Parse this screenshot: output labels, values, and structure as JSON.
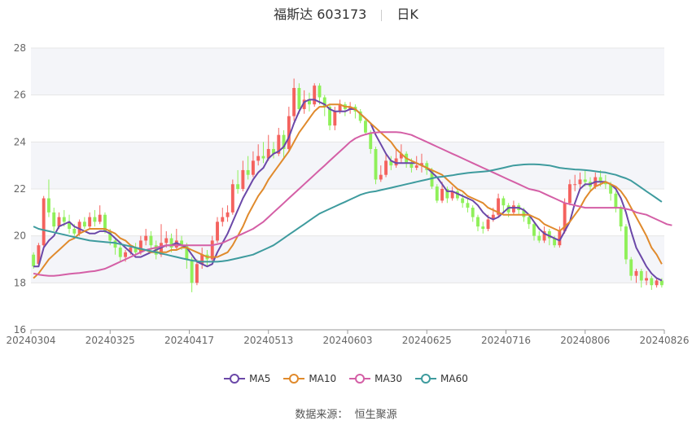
{
  "header": {
    "name": "福斯达 603173",
    "period": "日K"
  },
  "source": {
    "label": "数据来源：",
    "name": "恒生聚源"
  },
  "colors": {
    "up": "#f4625e",
    "down": "#8ff05a",
    "MA5": "#6b48a8",
    "MA10": "#e08a2c",
    "MA30": "#d45fa6",
    "MA60": "#3e9b9e",
    "grid": "#e6e6e6",
    "axis": "#666666",
    "band": "#f4f5f9"
  },
  "chart_data": {
    "type": "candlestick",
    "title": "福斯达 603173 日K",
    "ylim": [
      16,
      28
    ],
    "yticks": [
      16,
      18,
      20,
      22,
      24,
      26,
      28
    ],
    "xticks": [
      "20240304",
      "20240325",
      "20240417",
      "20240513",
      "20240603",
      "20240625",
      "20240716",
      "20240806",
      "20240826"
    ],
    "legend": [
      "MA5",
      "MA10",
      "MA30",
      "MA60"
    ],
    "legend_position": "bottom",
    "candles": [
      [
        19.2,
        18.7,
        19.3,
        18.6
      ],
      [
        18.8,
        19.6,
        19.7,
        18.7
      ],
      [
        19.6,
        21.6,
        21.7,
        19.5
      ],
      [
        21.6,
        21.0,
        22.4,
        20.8
      ],
      [
        21.0,
        20.4,
        21.2,
        20.2
      ],
      [
        20.4,
        20.8,
        21.0,
        20.3
      ],
      [
        20.8,
        20.6,
        21.1,
        20.4
      ],
      [
        20.6,
        20.3,
        20.9,
        20.1
      ],
      [
        20.3,
        20.1,
        20.5,
        20.0
      ],
      [
        20.1,
        20.6,
        20.7,
        20.0
      ],
      [
        20.6,
        20.4,
        20.8,
        20.3
      ],
      [
        20.4,
        20.8,
        21.0,
        20.3
      ],
      [
        20.8,
        20.6,
        21.1,
        20.4
      ],
      [
        20.6,
        20.9,
        21.3,
        20.5
      ],
      [
        20.9,
        20.2,
        21.0,
        20.1
      ],
      [
        20.2,
        19.8,
        20.3,
        19.6
      ],
      [
        19.8,
        19.5,
        19.9,
        19.2
      ],
      [
        19.5,
        19.1,
        19.6,
        18.9
      ],
      [
        19.1,
        19.3,
        19.4,
        18.9
      ],
      [
        19.3,
        19.5,
        19.6,
        19.2
      ],
      [
        19.5,
        19.3,
        19.7,
        19.2
      ],
      [
        19.3,
        19.8,
        20.0,
        19.2
      ],
      [
        19.8,
        20.0,
        20.3,
        19.6
      ],
      [
        20.0,
        19.6,
        20.2,
        19.4
      ],
      [
        19.6,
        19.2,
        19.8,
        19.0
      ],
      [
        19.2,
        19.7,
        20.5,
        19.1
      ],
      [
        19.7,
        19.9,
        20.2,
        19.5
      ],
      [
        19.9,
        19.5,
        20.1,
        19.3
      ],
      [
        19.5,
        19.8,
        20.3,
        19.4
      ],
      [
        19.8,
        19.6,
        20.0,
        19.4
      ],
      [
        19.6,
        19.0,
        19.7,
        18.6
      ],
      [
        19.0,
        18.0,
        19.1,
        17.6
      ],
      [
        18.0,
        18.8,
        19.0,
        17.9
      ],
      [
        18.8,
        19.2,
        19.5,
        18.6
      ],
      [
        19.2,
        19.0,
        19.4,
        18.7
      ],
      [
        19.0,
        19.8,
        20.0,
        18.9
      ],
      [
        19.8,
        20.6,
        20.8,
        19.7
      ],
      [
        20.6,
        20.8,
        21.2,
        20.4
      ],
      [
        20.8,
        21.0,
        21.3,
        20.6
      ],
      [
        21.0,
        22.2,
        22.4,
        20.9
      ],
      [
        22.2,
        22.0,
        22.8,
        21.8
      ],
      [
        22.0,
        22.8,
        23.2,
        21.9
      ],
      [
        22.8,
        22.6,
        23.4,
        22.4
      ],
      [
        22.6,
        23.2,
        23.6,
        22.5
      ],
      [
        23.2,
        23.4,
        23.9,
        23.0
      ],
      [
        23.4,
        23.3,
        24.0,
        23.1
      ],
      [
        23.3,
        23.7,
        24.3,
        23.2
      ],
      [
        23.7,
        23.5,
        24.0,
        23.3
      ],
      [
        23.5,
        24.3,
        24.6,
        23.4
      ],
      [
        24.3,
        23.7,
        24.5,
        23.3
      ],
      [
        23.7,
        25.1,
        25.5,
        23.6
      ],
      [
        25.1,
        26.3,
        26.7,
        24.9
      ],
      [
        26.3,
        25.4,
        26.5,
        25.2
      ],
      [
        25.4,
        25.8,
        26.2,
        25.2
      ],
      [
        25.8,
        25.6,
        26.1,
        25.3
      ],
      [
        25.6,
        26.4,
        26.5,
        25.5
      ],
      [
        26.4,
        25.9,
        26.5,
        25.6
      ],
      [
        25.9,
        25.5,
        26.0,
        25.1
      ],
      [
        25.5,
        24.7,
        25.6,
        24.5
      ],
      [
        24.7,
        25.3,
        25.5,
        24.5
      ],
      [
        25.3,
        25.6,
        25.8,
        25.2
      ],
      [
        25.6,
        25.4,
        25.7,
        25.1
      ],
      [
        25.4,
        25.5,
        25.7,
        25.2
      ],
      [
        25.5,
        25.3,
        25.6,
        25.0
      ],
      [
        25.3,
        24.9,
        25.4,
        24.8
      ],
      [
        24.9,
        24.4,
        25.0,
        24.3
      ],
      [
        24.4,
        23.7,
        24.5,
        23.5
      ],
      [
        23.7,
        22.4,
        23.8,
        22.2
      ],
      [
        22.4,
        22.6,
        23.0,
        22.3
      ],
      [
        22.6,
        23.2,
        23.5,
        22.5
      ],
      [
        23.2,
        23.0,
        23.4,
        22.8
      ],
      [
        23.0,
        23.3,
        23.7,
        22.9
      ],
      [
        23.3,
        23.5,
        23.9,
        23.1
      ],
      [
        23.5,
        23.1,
        23.6,
        22.9
      ],
      [
        23.1,
        22.9,
        23.3,
        22.7
      ],
      [
        22.9,
        23.0,
        23.4,
        22.8
      ],
      [
        23.0,
        23.1,
        23.5,
        22.7
      ],
      [
        23.1,
        22.8,
        23.2,
        22.6
      ],
      [
        22.8,
        22.1,
        22.9,
        22.0
      ],
      [
        22.1,
        21.5,
        22.2,
        21.4
      ],
      [
        21.5,
        22.0,
        22.3,
        21.4
      ],
      [
        22.0,
        21.6,
        22.1,
        21.4
      ],
      [
        21.6,
        21.9,
        22.1,
        21.5
      ],
      [
        21.9,
        21.6,
        22.0,
        21.5
      ],
      [
        21.6,
        21.4,
        21.8,
        21.2
      ],
      [
        21.4,
        21.2,
        21.6,
        21.0
      ],
      [
        21.2,
        20.8,
        21.3,
        20.6
      ],
      [
        20.8,
        20.4,
        20.9,
        20.2
      ],
      [
        20.4,
        20.3,
        20.6,
        20.1
      ],
      [
        20.3,
        20.7,
        20.9,
        20.2
      ],
      [
        20.7,
        20.9,
        21.2,
        20.6
      ],
      [
        20.9,
        21.6,
        21.8,
        20.8
      ],
      [
        21.6,
        21.3,
        21.7,
        21.0
      ],
      [
        21.3,
        21.0,
        21.4,
        20.8
      ],
      [
        21.0,
        21.3,
        21.5,
        20.9
      ],
      [
        21.3,
        21.1,
        21.4,
        20.9
      ],
      [
        21.1,
        20.8,
        21.2,
        20.6
      ],
      [
        20.8,
        20.5,
        20.9,
        20.3
      ],
      [
        20.5,
        20.0,
        20.6,
        19.8
      ],
      [
        20.0,
        19.8,
        20.2,
        19.7
      ],
      [
        19.8,
        20.2,
        20.4,
        19.7
      ],
      [
        20.2,
        19.9,
        20.3,
        19.6
      ],
      [
        19.9,
        19.6,
        20.0,
        19.5
      ],
      [
        19.6,
        20.2,
        20.4,
        19.5
      ],
      [
        20.2,
        21.4,
        21.6,
        20.1
      ],
      [
        21.4,
        22.2,
        22.4,
        21.3
      ],
      [
        22.2,
        22.2,
        22.6,
        21.9
      ],
      [
        22.2,
        22.4,
        22.7,
        22.0
      ],
      [
        22.4,
        22.3,
        22.8,
        22.1
      ],
      [
        22.3,
        22.1,
        22.5,
        21.9
      ],
      [
        22.1,
        22.5,
        22.7,
        22.0
      ],
      [
        22.5,
        22.3,
        22.8,
        22.1
      ],
      [
        22.3,
        22.2,
        22.6,
        22.0
      ],
      [
        22.2,
        21.8,
        22.3,
        21.5
      ],
      [
        21.8,
        21.2,
        21.9,
        21.0
      ],
      [
        21.2,
        20.4,
        21.3,
        20.2
      ],
      [
        20.4,
        19.0,
        20.5,
        18.8
      ],
      [
        19.0,
        18.3,
        19.1,
        18.1
      ],
      [
        18.3,
        18.5,
        18.6,
        18.0
      ],
      [
        18.5,
        18.1,
        18.6,
        17.8
      ],
      [
        18.1,
        18.2,
        18.5,
        17.9
      ],
      [
        18.2,
        17.9,
        18.3,
        17.7
      ],
      [
        17.9,
        18.1,
        18.2,
        17.8
      ],
      [
        18.1,
        17.9,
        18.2,
        17.8
      ]
    ],
    "ma_series": {
      "MA5": [
        18.7,
        18.7,
        19.5,
        19.8,
        20.0,
        20.4,
        20.5,
        20.6,
        20.4,
        20.3,
        20.2,
        20.1,
        20.1,
        20.2,
        20.2,
        20.1,
        19.9,
        19.7,
        19.5,
        19.3,
        19.1,
        19.1,
        19.2,
        19.3,
        19.4,
        19.5,
        19.6,
        19.6,
        19.7,
        19.6,
        19.5,
        19.2,
        18.9,
        18.8,
        18.7,
        18.8,
        19.3,
        19.7,
        20.1,
        20.6,
        21.1,
        21.6,
        22.0,
        22.4,
        22.7,
        22.9,
        23.3,
        23.5,
        23.6,
        23.8,
        24.2,
        24.8,
        25.3,
        25.7,
        25.8,
        25.8,
        25.7,
        25.6,
        25.4,
        25.3,
        25.3,
        25.3,
        25.4,
        25.4,
        25.2,
        25.0,
        24.8,
        24.3,
        23.9,
        23.5,
        23.2,
        23.1,
        23.1,
        23.1,
        23.1,
        23.1,
        23.0,
        22.9,
        22.7,
        22.5,
        22.2,
        21.9,
        21.9,
        21.8,
        21.7,
        21.6,
        21.5,
        21.3,
        21.0,
        20.8,
        20.7,
        20.8,
        21.0,
        21.2,
        21.2,
        21.2,
        21.1,
        20.9,
        20.6,
        20.3,
        20.1,
        20.0,
        19.9,
        19.8,
        20.2,
        20.6,
        21.4,
        22.0,
        22.2,
        22.2,
        22.3,
        22.3,
        22.3,
        22.2,
        22.0,
        21.6,
        21.0,
        20.2,
        19.5,
        19.1,
        18.7,
        18.4,
        18.2,
        18.1
      ],
      "MA10": [
        18.2,
        18.4,
        18.7,
        19.0,
        19.2,
        19.4,
        19.6,
        19.8,
        19.9,
        20.1,
        20.2,
        20.3,
        20.3,
        20.3,
        20.3,
        20.2,
        20.1,
        19.9,
        19.8,
        19.6,
        19.5,
        19.4,
        19.4,
        19.3,
        19.3,
        19.3,
        19.3,
        19.4,
        19.4,
        19.5,
        19.5,
        19.4,
        19.3,
        19.2,
        19.1,
        19.1,
        19.1,
        19.2,
        19.3,
        19.6,
        20.0,
        20.4,
        20.9,
        21.3,
        21.7,
        22.0,
        22.4,
        22.7,
        23.0,
        23.3,
        23.6,
        24.0,
        24.4,
        24.7,
        25.0,
        25.3,
        25.5,
        25.5,
        25.6,
        25.6,
        25.6,
        25.5,
        25.5,
        25.4,
        25.2,
        25.0,
        24.8,
        24.6,
        24.4,
        24.2,
        24.0,
        23.7,
        23.5,
        23.3,
        23.2,
        23.1,
        23.0,
        22.9,
        22.8,
        22.7,
        22.6,
        22.4,
        22.2,
        22.0,
        21.9,
        21.7,
        21.6,
        21.5,
        21.4,
        21.2,
        21.1,
        21.0,
        20.9,
        20.9,
        20.9,
        20.9,
        20.9,
        20.9,
        20.8,
        20.7,
        20.5,
        20.4,
        20.3,
        20.2,
        20.4,
        20.6,
        20.9,
        21.2,
        21.6,
        21.9,
        22.1,
        22.2,
        22.3,
        22.2,
        22.1,
        21.9,
        21.6,
        21.2,
        20.8,
        20.4,
        20.0,
        19.5,
        19.2,
        18.8
      ],
      "MA30": [
        18.4,
        18.35,
        18.32,
        18.3,
        18.3,
        18.32,
        18.35,
        18.38,
        18.4,
        18.42,
        18.45,
        18.48,
        18.5,
        18.55,
        18.6,
        18.7,
        18.8,
        18.9,
        19.0,
        19.1,
        19.2,
        19.3,
        19.4,
        19.45,
        19.5,
        19.55,
        19.6,
        19.6,
        19.6,
        19.6,
        19.6,
        19.6,
        19.6,
        19.6,
        19.6,
        19.6,
        19.65,
        19.7,
        19.8,
        19.9,
        20.0,
        20.1,
        20.2,
        20.3,
        20.45,
        20.6,
        20.8,
        21.0,
        21.2,
        21.4,
        21.6,
        21.8,
        22.0,
        22.2,
        22.4,
        22.6,
        22.8,
        23.0,
        23.2,
        23.4,
        23.6,
        23.8,
        24.0,
        24.15,
        24.25,
        24.32,
        24.38,
        24.4,
        24.42,
        24.42,
        24.42,
        24.42,
        24.4,
        24.35,
        24.3,
        24.2,
        24.1,
        24.0,
        23.9,
        23.8,
        23.7,
        23.6,
        23.5,
        23.4,
        23.3,
        23.2,
        23.1,
        23.0,
        22.9,
        22.8,
        22.7,
        22.6,
        22.5,
        22.4,
        22.3,
        22.2,
        22.1,
        22.0,
        21.95,
        21.9,
        21.8,
        21.7,
        21.6,
        21.5,
        21.4,
        21.35,
        21.3,
        21.25,
        21.2,
        21.2,
        21.2,
        21.2,
        21.2,
        21.2,
        21.2,
        21.2,
        21.15,
        21.1,
        21.0,
        20.95,
        20.9,
        20.8,
        20.7,
        20.6,
        20.5,
        20.45
      ],
      "MA60": [
        20.4,
        20.3,
        20.25,
        20.2,
        20.15,
        20.1,
        20.05,
        20.0,
        19.95,
        19.9,
        19.85,
        19.8,
        19.78,
        19.76,
        19.74,
        19.72,
        19.7,
        19.65,
        19.6,
        19.55,
        19.5,
        19.45,
        19.4,
        19.35,
        19.3,
        19.25,
        19.2,
        19.15,
        19.1,
        19.05,
        19.0,
        18.95,
        18.92,
        18.9,
        18.9,
        18.9,
        18.9,
        18.92,
        18.95,
        19.0,
        19.05,
        19.1,
        19.15,
        19.2,
        19.3,
        19.4,
        19.5,
        19.6,
        19.75,
        19.9,
        20.05,
        20.2,
        20.35,
        20.5,
        20.65,
        20.8,
        20.95,
        21.05,
        21.15,
        21.25,
        21.35,
        21.45,
        21.55,
        21.65,
        21.75,
        21.82,
        21.87,
        21.9,
        21.95,
        22.0,
        22.05,
        22.1,
        22.15,
        22.2,
        22.25,
        22.3,
        22.35,
        22.4,
        22.45,
        22.5,
        22.52,
        22.55,
        22.58,
        22.62,
        22.65,
        22.68,
        22.7,
        22.72,
        22.74,
        22.76,
        22.8,
        22.85,
        22.9,
        22.95,
        23.0,
        23.02,
        23.04,
        23.05,
        23.05,
        23.04,
        23.02,
        23.0,
        22.95,
        22.9,
        22.87,
        22.85,
        22.83,
        22.82,
        22.8,
        22.78,
        22.75,
        22.72,
        22.7,
        22.65,
        22.6,
        22.52,
        22.45,
        22.35,
        22.2,
        22.05,
        21.9,
        21.75,
        21.6,
        21.45
      ]
    }
  }
}
